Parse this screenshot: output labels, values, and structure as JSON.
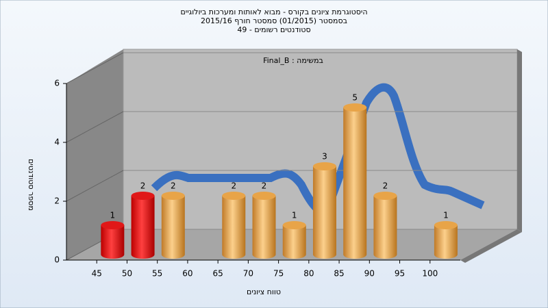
{
  "chart_data": {
    "type": "histogram",
    "title": "היסטוגרמת ציונים בקורס - מבוא לאותות ומערכות ביולוגיים",
    "subtitle": "בסמסטר  (01/2015)  סמסטר חורף 2015/16",
    "subtitle2": "סטודנטים רשומים - 49",
    "annotation": "Final_B : במשימה",
    "x_label": "טווח ציונים",
    "y_label": "מספר סטודנטים",
    "bins": [
      45,
      50,
      55,
      60,
      65,
      70,
      75,
      80,
      85,
      90,
      95,
      100,
      105
    ],
    "values": [
      1,
      2,
      2,
      0,
      2,
      2,
      1,
      3,
      5,
      2,
      0,
      1
    ],
    "colors": [
      "#e01818",
      "#e01818",
      "#e8a448",
      "#e8a448",
      "#e8a448",
      "#e8a448",
      "#e8a448",
      "#e8a448",
      "#e8a448",
      "#e8a448",
      "#e8a448",
      "#e8a448"
    ],
    "xlim": [
      40,
      105
    ],
    "xticks": [
      45,
      50,
      55,
      60,
      65,
      70,
      75,
      80,
      85,
      90,
      95,
      100
    ],
    "ylim": [
      0,
      6
    ],
    "yticks": [
      0,
      2,
      4,
      6
    ],
    "grid": true
  }
}
